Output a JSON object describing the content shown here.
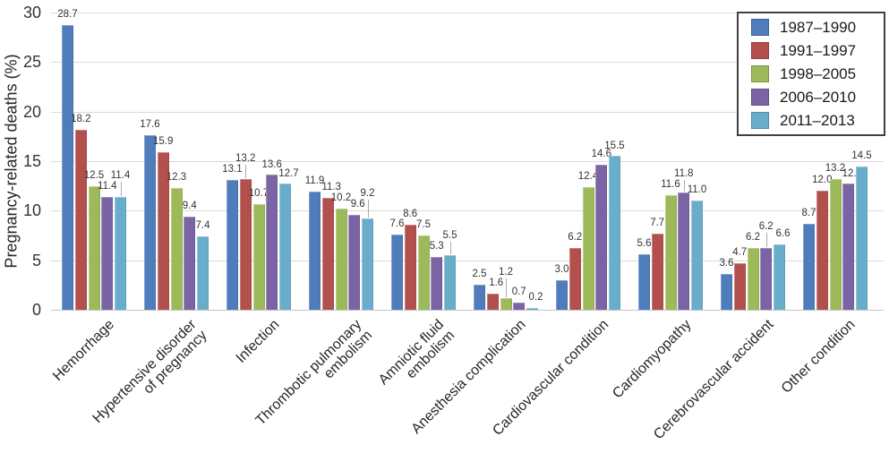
{
  "chart_data": {
    "type": "bar",
    "title": "",
    "xlabel": "",
    "ylabel": "Pregnancy-related deaths (%)",
    "ylim": [
      0,
      30
    ],
    "yticks": [
      0,
      5,
      10,
      15,
      20,
      25,
      30
    ],
    "grid": true,
    "legend_position": "top-right",
    "value_labels_shown": true,
    "categories": [
      "Hemorrhage",
      "Hypertensive disorder\nof pregnancy",
      "Infection",
      "Thrombotic pulmonary\nembolism",
      "Amniotic fluid\nembolism",
      "Anesthesia complication",
      "Cardiovascular condition",
      "Cardiomyopathy",
      "Cerebrovascular accident",
      "Other condition"
    ],
    "series": [
      {
        "name": "1987–1990",
        "color": "#4f7cba",
        "values": [
          28.7,
          17.6,
          13.1,
          11.9,
          7.6,
          2.5,
          3.0,
          5.6,
          3.6,
          8.7
        ]
      },
      {
        "name": "1991–1997",
        "color": "#b2504d",
        "values": [
          18.2,
          15.9,
          13.2,
          11.3,
          8.6,
          1.6,
          6.2,
          7.7,
          4.7,
          12.0
        ]
      },
      {
        "name": "1998–2005",
        "color": "#9dba5b",
        "values": [
          12.5,
          12.3,
          10.7,
          10.2,
          7.5,
          1.2,
          12.4,
          11.6,
          6.2,
          13.2
        ]
      },
      {
        "name": "2006–2010",
        "color": "#7a64a4",
        "values": [
          11.4,
          9.4,
          13.6,
          9.6,
          5.3,
          0.7,
          14.6,
          11.8,
          6.2,
          12.7
        ]
      },
      {
        "name": "2011–2013",
        "color": "#69adcb",
        "values": [
          11.4,
          7.4,
          12.7,
          9.2,
          5.5,
          0.2,
          15.5,
          11.0,
          6.6,
          14.5
        ]
      }
    ],
    "colors": {
      "gridline": "#dadada",
      "axis_line": "#c6c6c6",
      "label_text": "#333333",
      "legend_border": "#404040"
    }
  }
}
